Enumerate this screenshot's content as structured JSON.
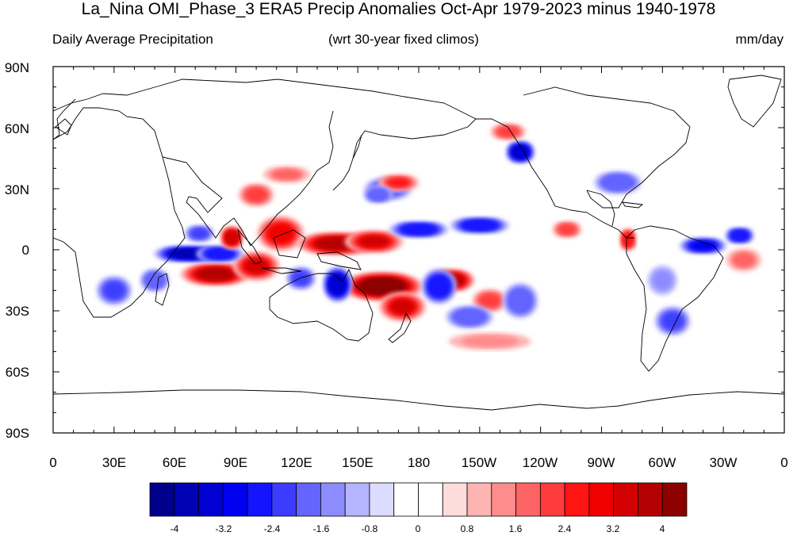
{
  "title": "La_Nina OMI_Phase_3 ERA5 Precip Anomalies Oct-Apr 1979-2023 minus 1940-1978",
  "subtitle_left": "Daily Average Precipitation",
  "subtitle_center": "(wrt 30-year fixed climos)",
  "subtitle_right": "mm/day",
  "lat_labels": [
    "90N",
    "60N",
    "30N",
    "0",
    "30S",
    "60S",
    "90S"
  ],
  "lon_labels": [
    "0",
    "30E",
    "60E",
    "90E",
    "120E",
    "150E",
    "180",
    "150W",
    "120W",
    "90W",
    "60W",
    "30W",
    "0"
  ],
  "colorbar": {
    "colors": [
      "#00008c",
      "#0000b4",
      "#0000d2",
      "#0000f0",
      "#1414ff",
      "#3c3cff",
      "#6464ff",
      "#8c8cff",
      "#b4b4ff",
      "#dcdcff",
      "#ffffff",
      "#ffffff",
      "#ffdcdc",
      "#ffb4b4",
      "#ff8c8c",
      "#ff6464",
      "#ff3c3c",
      "#ff1414",
      "#f00000",
      "#d20000",
      "#b40000",
      "#8c0000"
    ],
    "tick_labels": [
      "-4",
      "-3.2",
      "-2.4",
      "-1.6",
      "-0.8",
      "0",
      "0.8",
      "1.6",
      "2.4",
      "3.2",
      "4"
    ]
  },
  "anomalies": [
    {
      "lon": 80,
      "lat": -12,
      "value": 3.6,
      "wlon": 12,
      "wlat": 4
    },
    {
      "lon": 100,
      "lat": -8,
      "value": 3.2,
      "wlon": 8,
      "wlat": 5
    },
    {
      "lon": 67,
      "lat": -2,
      "value": -3.8,
      "wlon": 12,
      "wlat": 3
    },
    {
      "lon": 82,
      "lat": -2,
      "value": -2.6,
      "wlon": 8,
      "wlat": 3
    },
    {
      "lon": 88,
      "lat": 6,
      "value": 3.4,
      "wlon": 4,
      "wlat": 4
    },
    {
      "lon": 72,
      "lat": 8,
      "value": -2.4,
      "wlon": 5,
      "wlat": 3
    },
    {
      "lon": 112,
      "lat": 8,
      "value": 3.0,
      "wlon": 8,
      "wlat": 6
    },
    {
      "lon": 140,
      "lat": 3,
      "value": 3.8,
      "wlon": 14,
      "wlat": 4
    },
    {
      "lon": 158,
      "lat": 4,
      "value": 3.2,
      "wlon": 10,
      "wlat": 4
    },
    {
      "lon": 162,
      "lat": -18,
      "value": 4.2,
      "wlon": 14,
      "wlat": 5
    },
    {
      "lon": 172,
      "lat": -28,
      "value": 3.2,
      "wlon": 8,
      "wlat": 5
    },
    {
      "lon": 196,
      "lat": -15,
      "value": 3.6,
      "wlon": 8,
      "wlat": 4
    },
    {
      "lon": 215,
      "lat": -25,
      "value": 2.0,
      "wlon": 6,
      "wlat": 4
    },
    {
      "lon": 140,
      "lat": -17,
      "value": -3.4,
      "wlon": 5,
      "wlat": 6
    },
    {
      "lon": 122,
      "lat": -14,
      "value": -2.2,
      "wlon": 5,
      "wlat": 4
    },
    {
      "lon": 190,
      "lat": -18,
      "value": -2.6,
      "wlon": 6,
      "wlat": 6
    },
    {
      "lon": 205,
      "lat": -33,
      "value": -2.0,
      "wlon": 8,
      "wlat": 4
    },
    {
      "lon": 230,
      "lat": -25,
      "value": -2.0,
      "wlon": 6,
      "wlat": 6
    },
    {
      "lon": 180,
      "lat": 10,
      "value": -2.8,
      "wlon": 10,
      "wlat": 3
    },
    {
      "lon": 210,
      "lat": 12,
      "value": -2.6,
      "wlon": 10,
      "wlat": 3
    },
    {
      "lon": 165,
      "lat": 30,
      "value": -1.8,
      "wlon": 8,
      "wlat": 4
    },
    {
      "lon": 170,
      "lat": 33,
      "value": 2.4,
      "wlon": 7,
      "wlat": 3
    },
    {
      "lon": 230,
      "lat": 48,
      "value": -3.4,
      "wlon": 5,
      "wlat": 4
    },
    {
      "lon": 224,
      "lat": 58,
      "value": 2.2,
      "wlon": 6,
      "wlat": 3
    },
    {
      "lon": 253,
      "lat": 10,
      "value": 2.2,
      "wlon": 5,
      "wlat": 3
    },
    {
      "lon": 283,
      "lat": 5,
      "value": 2.6,
      "wlon": 3,
      "wlat": 4
    },
    {
      "lon": 320,
      "lat": 2,
      "value": -3.2,
      "wlon": 8,
      "wlat": 3
    },
    {
      "lon": 338,
      "lat": 7,
      "value": -2.6,
      "wlon": 5,
      "wlat": 3
    },
    {
      "lon": 340,
      "lat": -5,
      "value": 1.6,
      "wlon": 6,
      "wlat": 4
    },
    {
      "lon": 30,
      "lat": -20,
      "value": -2.4,
      "wlon": 6,
      "wlat": 5
    },
    {
      "lon": 50,
      "lat": -15,
      "value": -2.0,
      "wlon": 5,
      "wlat": 4
    },
    {
      "lon": 160,
      "lat": 27,
      "value": -1.8,
      "wlon": 5,
      "wlat": 3
    },
    {
      "lon": 278,
      "lat": 33,
      "value": -1.8,
      "wlon": 8,
      "wlat": 4
    },
    {
      "lon": 305,
      "lat": -35,
      "value": -2.2,
      "wlon": 6,
      "wlat": 5
    },
    {
      "lon": 300,
      "lat": -15,
      "value": -1.6,
      "wlon": 5,
      "wlat": 5
    },
    {
      "lon": 215,
      "lat": -45,
      "value": 1.4,
      "wlon": 14,
      "wlat": 3
    },
    {
      "lon": 100,
      "lat": 27,
      "value": 2.0,
      "wlon": 6,
      "wlat": 4
    },
    {
      "lon": 115,
      "lat": 37,
      "value": 1.6,
      "wlon": 8,
      "wlat": 3
    }
  ]
}
